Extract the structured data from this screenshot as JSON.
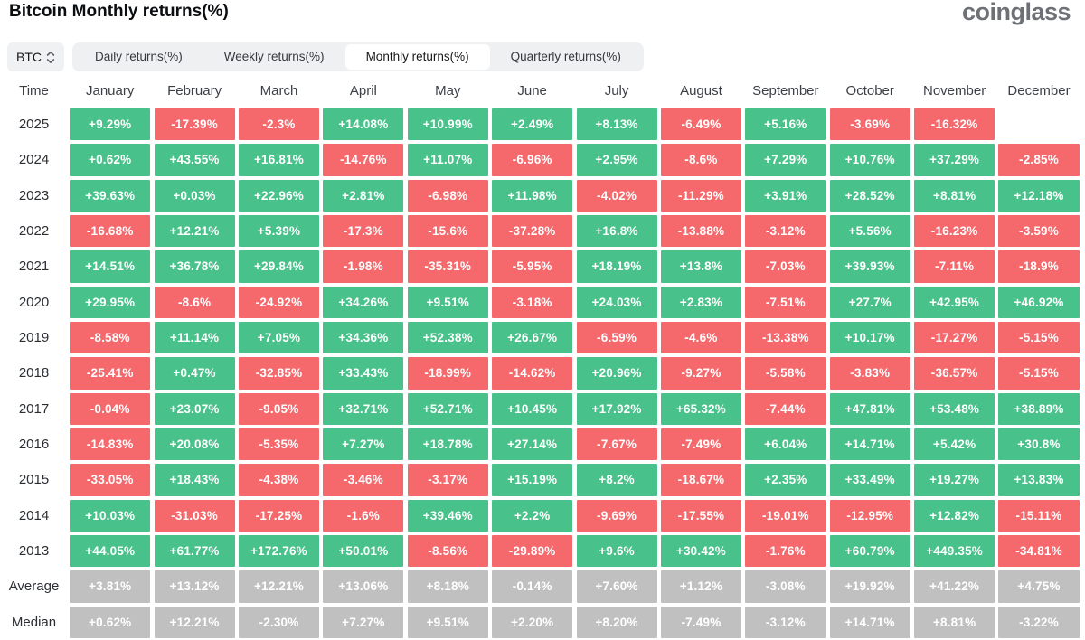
{
  "header": {
    "title": "Bitcoin Monthly returns(%)",
    "brand": "coinglass"
  },
  "controls": {
    "symbol": {
      "label": "BTC",
      "icon": "sort-vertical-icon"
    },
    "tabs": [
      {
        "label": "Daily returns(%)",
        "active": false
      },
      {
        "label": "Weekly returns(%)",
        "active": false
      },
      {
        "label": "Monthly returns(%)",
        "active": true
      },
      {
        "label": "Quarterly returns(%)",
        "active": false
      }
    ]
  },
  "colors": {
    "positive": "#48c28a",
    "negative": "#f5696d",
    "neutral": "#c0c0c0"
  },
  "chart_data": {
    "type": "heatmap",
    "title": "Bitcoin Monthly returns(%)",
    "columns": [
      "Time",
      "January",
      "February",
      "March",
      "April",
      "May",
      "June",
      "July",
      "August",
      "September",
      "October",
      "November",
      "December"
    ],
    "summary_row_labels": [
      "Average",
      "Median"
    ],
    "rows": [
      {
        "label": "2025",
        "values": [
          "+9.29%",
          "-17.39%",
          "-2.3%",
          "+14.08%",
          "+10.99%",
          "+2.49%",
          "+8.13%",
          "-6.49%",
          "+5.16%",
          "-3.69%",
          "-16.32%",
          null
        ]
      },
      {
        "label": "2024",
        "values": [
          "+0.62%",
          "+43.55%",
          "+16.81%",
          "-14.76%",
          "+11.07%",
          "-6.96%",
          "+2.95%",
          "-8.6%",
          "+7.29%",
          "+10.76%",
          "+37.29%",
          "-2.85%"
        ]
      },
      {
        "label": "2023",
        "values": [
          "+39.63%",
          "+0.03%",
          "+22.96%",
          "+2.81%",
          "-6.98%",
          "+11.98%",
          "-4.02%",
          "-11.29%",
          "+3.91%",
          "+28.52%",
          "+8.81%",
          "+12.18%"
        ]
      },
      {
        "label": "2022",
        "values": [
          "-16.68%",
          "+12.21%",
          "+5.39%",
          "-17.3%",
          "-15.6%",
          "-37.28%",
          "+16.8%",
          "-13.88%",
          "-3.12%",
          "+5.56%",
          "-16.23%",
          "-3.59%"
        ]
      },
      {
        "label": "2021",
        "values": [
          "+14.51%",
          "+36.78%",
          "+29.84%",
          "-1.98%",
          "-35.31%",
          "-5.95%",
          "+18.19%",
          "+13.8%",
          "-7.03%",
          "+39.93%",
          "-7.11%",
          "-18.9%"
        ]
      },
      {
        "label": "2020",
        "values": [
          "+29.95%",
          "-8.6%",
          "-24.92%",
          "+34.26%",
          "+9.51%",
          "-3.18%",
          "+24.03%",
          "+2.83%",
          "-7.51%",
          "+27.7%",
          "+42.95%",
          "+46.92%"
        ]
      },
      {
        "label": "2019",
        "values": [
          "-8.58%",
          "+11.14%",
          "+7.05%",
          "+34.36%",
          "+52.38%",
          "+26.67%",
          "-6.59%",
          "-4.6%",
          "-13.38%",
          "+10.17%",
          "-17.27%",
          "-5.15%"
        ]
      },
      {
        "label": "2018",
        "values": [
          "-25.41%",
          "+0.47%",
          "-32.85%",
          "+33.43%",
          "-18.99%",
          "-14.62%",
          "+20.96%",
          "-9.27%",
          "-5.58%",
          "-3.83%",
          "-36.57%",
          "-5.15%"
        ]
      },
      {
        "label": "2017",
        "values": [
          "-0.04%",
          "+23.07%",
          "-9.05%",
          "+32.71%",
          "+52.71%",
          "+10.45%",
          "+17.92%",
          "+65.32%",
          "-7.44%",
          "+47.81%",
          "+53.48%",
          "+38.89%"
        ]
      },
      {
        "label": "2016",
        "values": [
          "-14.83%",
          "+20.08%",
          "-5.35%",
          "+7.27%",
          "+18.78%",
          "+27.14%",
          "-7.67%",
          "-7.49%",
          "+6.04%",
          "+14.71%",
          "+5.42%",
          "+30.8%"
        ]
      },
      {
        "label": "2015",
        "values": [
          "-33.05%",
          "+18.43%",
          "-4.38%",
          "-3.46%",
          "-3.17%",
          "+15.19%",
          "+8.2%",
          "-18.67%",
          "+2.35%",
          "+33.49%",
          "+19.27%",
          "+13.83%"
        ]
      },
      {
        "label": "2014",
        "values": [
          "+10.03%",
          "-31.03%",
          "-17.25%",
          "-1.6%",
          "+39.46%",
          "+2.2%",
          "-9.69%",
          "-17.55%",
          "-19.01%",
          "-12.95%",
          "+12.82%",
          "-15.11%"
        ]
      },
      {
        "label": "2013",
        "values": [
          "+44.05%",
          "+61.77%",
          "+172.76%",
          "+50.01%",
          "-8.56%",
          "-29.89%",
          "+9.6%",
          "+30.42%",
          "-1.76%",
          "+60.79%",
          "+449.35%",
          "-34.81%"
        ]
      },
      {
        "label": "Average",
        "values": [
          "+3.81%",
          "+13.12%",
          "+12.21%",
          "+13.06%",
          "+8.18%",
          "-0.14%",
          "+7.60%",
          "+1.12%",
          "-3.08%",
          "+19.92%",
          "+41.22%",
          "+4.75%"
        ]
      },
      {
        "label": "Median",
        "values": [
          "+0.62%",
          "+12.21%",
          "-2.30%",
          "+7.27%",
          "+9.51%",
          "+2.20%",
          "+8.20%",
          "-7.49%",
          "-3.12%",
          "+14.71%",
          "+8.81%",
          "-3.22%"
        ]
      }
    ]
  }
}
